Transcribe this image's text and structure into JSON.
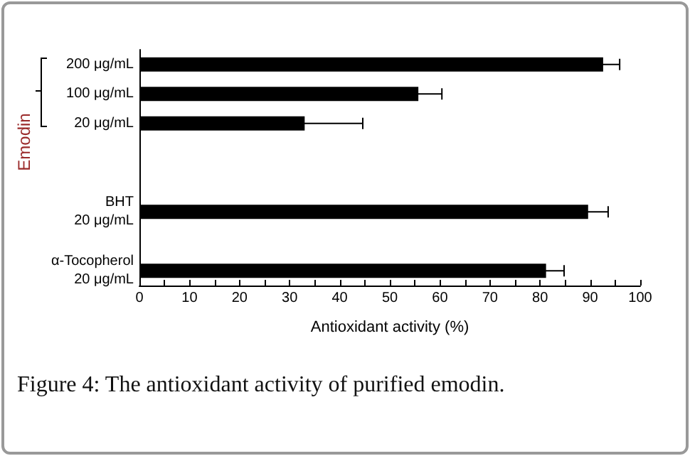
{
  "chart_data": {
    "type": "bar",
    "orientation": "horizontal",
    "title": "Figure 4: The antioxidant activity of purified emodin.",
    "xlabel": "Antioxidant activity (%)",
    "categories": [
      "200 μg/mL",
      "100 μg/mL",
      "20 μg/mL",
      null,
      null,
      "BHT\n20 μg/mL",
      null,
      "α-Tocopherol\n20 μg/mL"
    ],
    "values": [
      92.6,
      55.7,
      33,
      null,
      null,
      89.6,
      null,
      81.2
    ],
    "errors": [
      3.3,
      4.7,
      11.6,
      null,
      null,
      4,
      null,
      3.6
    ],
    "color": "#000000",
    "xlim": [
      0,
      100
    ],
    "xticks": [
      0,
      {
        "value": 5,
        "label": null
      },
      10,
      {
        "value": 15,
        "label": null
      },
      20,
      {
        "value": 25,
        "label": null
      },
      30,
      {
        "value": 35,
        "label": null
      },
      40,
      {
        "value": 45,
        "label": null
      },
      50,
      {
        "value": 55,
        "label": null
      },
      60,
      {
        "value": 65,
        "label": null
      },
      70,
      {
        "value": 75,
        "label": null
      },
      80,
      {
        "value": 85,
        "label": null
      },
      90,
      {
        "value": 95,
        "label": null
      },
      100
    ],
    "annotations": [
      "Emodin"
    ],
    "grid": false
  }
}
